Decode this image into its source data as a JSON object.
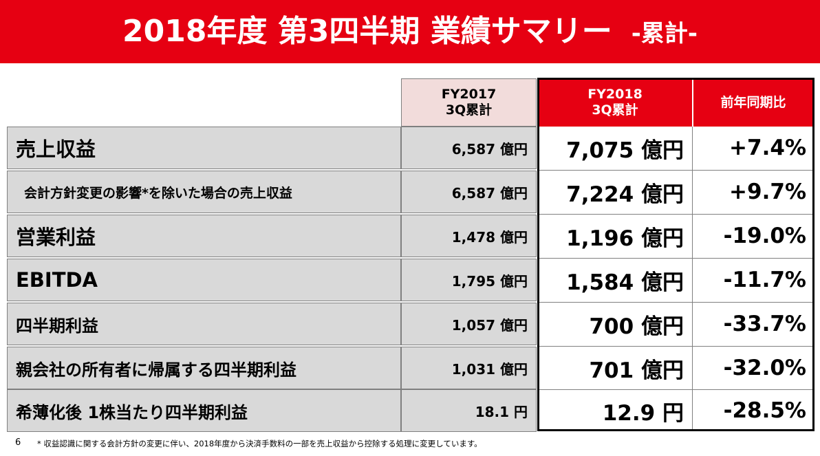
{
  "header": {
    "title": "2018年度 第3四半期 業績サマリー",
    "subtitle": "-累計-"
  },
  "columns": {
    "fy2017_line1": "FY2017",
    "fy2017_line2": "3Q累計",
    "fy2018_line1": "FY2018",
    "fy2018_line2": "3Q累計",
    "yoy": "前年同期比"
  },
  "rows": [
    {
      "label": "売上収益",
      "fy2017": "6,587 億円",
      "fy2018": "7,075 億円",
      "yoy": "+7.4%"
    },
    {
      "label": "会計方針変更の影響*を除いた場合の売上収益",
      "fy2017": "6,587 億円",
      "fy2018": "7,224 億円",
      "yoy": "+9.7%"
    },
    {
      "label": "営業利益",
      "fy2017": "1,478 億円",
      "fy2018": "1,196 億円",
      "yoy": "-19.0%"
    },
    {
      "label": "EBITDA",
      "fy2017": "1,795 億円",
      "fy2018": "1,584 億円",
      "yoy": "-11.7%"
    },
    {
      "label": "四半期利益",
      "fy2017": "1,057 億円",
      "fy2018": "700 億円",
      "yoy": "-33.7%"
    },
    {
      "label": "親会社の所有者に帰属する四半期利益",
      "fy2017": "1,031 億円",
      "fy2018": "701 億円",
      "yoy": "-32.0%"
    },
    {
      "label": "希薄化後 1株当たり四半期利益",
      "fy2017": "18.1 円",
      "fy2018": "12.9 円",
      "yoy": "-28.5%"
    }
  ],
  "footer": {
    "page_number": "6",
    "note": "* 収益認識に関する会計方針の変更に伴い、2018年度から決済手数料の一部を売上収益から控除する処理に変更しています。"
  },
  "colors": {
    "brand_red": "#e60012",
    "prior_year_header": "#f2dcdb",
    "row_gray": "#d9d9d9"
  }
}
